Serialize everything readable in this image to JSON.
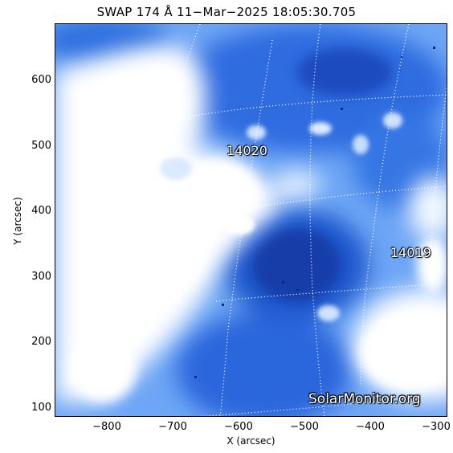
{
  "title": "SWAP 174 Å 11−Mar−2025 18:05:30.705",
  "axes": {
    "xlabel": "X (arcsec)",
    "ylabel": "Y (arcsec)",
    "x_ticks": [
      "−800",
      "−700",
      "−600",
      "−500",
      "−400",
      "−300"
    ],
    "y_ticks": [
      "600",
      "500",
      "400",
      "300",
      "200",
      "100"
    ],
    "xlim": [
      -880,
      -290
    ],
    "ylim": [
      85,
      690
    ]
  },
  "active_regions": [
    {
      "label": "14020",
      "x": -570,
      "y": 495
    },
    {
      "label": "14019",
      "x": -335,
      "y": 340
    }
  ],
  "watermark": "SolarMonitor.org",
  "colors": {
    "saturated": "#ffffff",
    "bright": "#b9d9ff",
    "mid": "#4a8ef0",
    "dark": "#1a4fc4",
    "darkest": "#0b2a7a",
    "grid": "#ffffff"
  }
}
